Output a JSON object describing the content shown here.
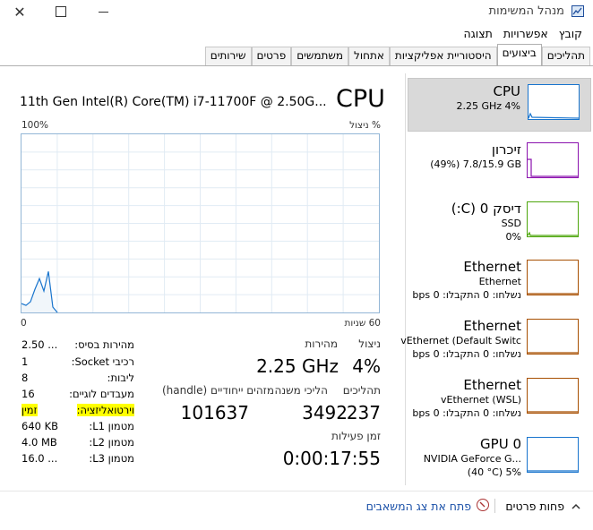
{
  "window": {
    "title": "מנהל המשימות",
    "icon": "task-manager-icon"
  },
  "menu": [
    "קובץ",
    "אפשרויות",
    "תצוגה"
  ],
  "tabs": [
    {
      "label": "תהליכים",
      "active": false
    },
    {
      "label": "ביצועים",
      "active": true
    },
    {
      "label": "היסטוריית אפליקציות",
      "active": false
    },
    {
      "label": "אתחול",
      "active": false
    },
    {
      "label": "משתמשים",
      "active": false
    },
    {
      "label": "פרטים",
      "active": false
    },
    {
      "label": "שירותים",
      "active": false
    }
  ],
  "sidebar": [
    {
      "name": "CPU",
      "lines": [
        "2.25 GHz 4%"
      ],
      "color": "#1874cd",
      "selected": true
    },
    {
      "name": "זיכרון",
      "lines": [
        "(49%) 7.8/15.9 GB"
      ],
      "color": "#8b12ae",
      "selected": false
    },
    {
      "name": "דיסק 0 (C:)",
      "lines": [
        "SSD",
        "0%"
      ],
      "color": "#4da60c",
      "selected": false
    },
    {
      "name": "Ethernet",
      "lines": [
        "Ethernet",
        "נשלחו: 0 התקבלו: 0 bps"
      ],
      "color": "#a74f01",
      "selected": false
    },
    {
      "name": "Ethernet",
      "lines": [
        "vEthernet (Default Switc",
        "נשלחו: 0 התקבלו: 0 bps"
      ],
      "color": "#a74f01",
      "selected": false
    },
    {
      "name": "Ethernet",
      "lines": [
        "vEthernet (WSL)",
        "נשלחו: 0 התקבלו: 0 bps"
      ],
      "color": "#a74f01",
      "selected": false
    },
    {
      "name": "GPU 0",
      "lines": [
        "NVIDIA GeForce G...",
        "(40 °C) 5%"
      ],
      "color": "#1874cd",
      "selected": false
    }
  ],
  "main": {
    "title": "CPU",
    "model": "11th Gen Intel(R) Core(TM) i7-11700F @ 2.50G...",
    "graph": {
      "y_label": "% ניצול",
      "y_max": "100%",
      "x_left": "0",
      "x_right": "60 שניות",
      "usage_points": [
        5,
        4,
        6,
        13,
        19,
        12,
        23,
        3,
        0
      ]
    },
    "stats": {
      "util_label": "ניצול",
      "util_value": "4%",
      "speed_label": "מהירות",
      "speed_value": "2.25 GHz",
      "proc_label": "תהליכים",
      "proc_value": "237",
      "threads_label": "הליכי משנה",
      "threads_value": "3492",
      "handles_label": "מזהים ייחודיים (handle)",
      "handles_value": "101637",
      "uptime_label": "זמן פעילות",
      "uptime_value": "0:00:17:55"
    },
    "details": [
      {
        "label": "מהירות בסיס:",
        "value": "2.50 ...",
        "highlight": false
      },
      {
        "label": "רכיבי Socket:",
        "value": "1",
        "highlight": false
      },
      {
        "label": "ליבות:",
        "value": "8",
        "highlight": false
      },
      {
        "label": "מעבדים לוגיים:",
        "value": "16",
        "highlight": false
      },
      {
        "label": "וירטואליזציה:",
        "value": "זמין",
        "highlight": true
      },
      {
        "label": "מטמון L1:",
        "value": "640 KB",
        "highlight": false
      },
      {
        "label": "מטמון L2:",
        "value": "4.0 MB",
        "highlight": false
      },
      {
        "label": "מטמון L3:",
        "value": "16.0 ...",
        "highlight": false
      }
    ]
  },
  "footer": {
    "fewer_details": "פחות פרטים",
    "open_resource_monitor": "פתח את צג המשאבים"
  }
}
